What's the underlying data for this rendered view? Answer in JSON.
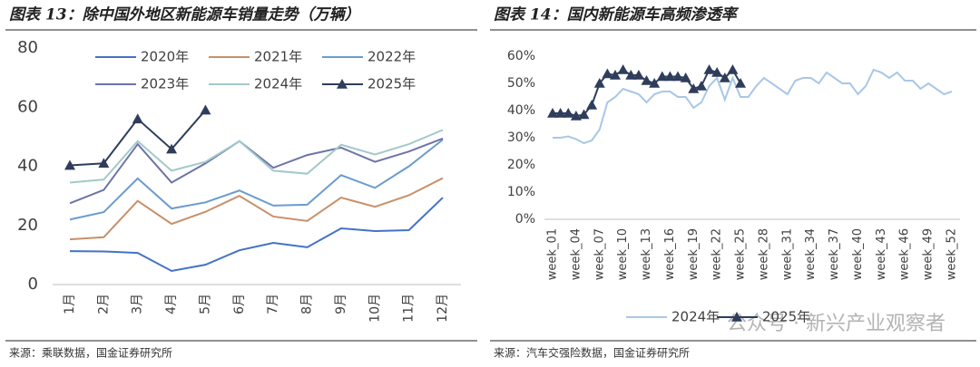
{
  "chart_data": [
    {
      "type": "line",
      "title": "图表 13：除中国外地区新能源车销量走势（万辆）",
      "source": "来源：乘联数据，国金证券研究所",
      "categories": [
        "1月",
        "2月",
        "3月",
        "4月",
        "5月",
        "6月",
        "7月",
        "8月",
        "9月",
        "10月",
        "11月",
        "12月"
      ],
      "ylim": [
        0,
        80
      ],
      "yticks": [
        0,
        20,
        40,
        60,
        80
      ],
      "legend": "top",
      "grid": false,
      "series": [
        {
          "name": "2020年",
          "color": "#4472c4",
          "values": [
            11.3,
            11.2,
            10.7,
            4.6,
            6.7,
            11.6,
            14.1,
            12.6,
            19,
            18.1,
            18.4,
            29.4
          ]
        },
        {
          "name": "2021年",
          "color": "#c8906a",
          "values": [
            15.3,
            16,
            28.3,
            20.5,
            24.6,
            30,
            23,
            21.5,
            29.4,
            26.3,
            30.2,
            36
          ]
        },
        {
          "name": "2022年",
          "color": "#6a9bd0",
          "values": [
            22,
            24.5,
            35.9,
            25.7,
            27.8,
            31.8,
            26.7,
            27,
            37,
            32.7,
            40,
            49
          ]
        },
        {
          "name": "2023年",
          "color": "#6d74a8",
          "values": [
            27.5,
            32,
            47.5,
            34.5,
            41,
            48.5,
            39.5,
            43.8,
            46.3,
            41.5,
            45,
            49.4
          ]
        },
        {
          "name": "2024年",
          "color": "#a3c9c9",
          "values": [
            34.5,
            35.5,
            48.5,
            38.5,
            41.5,
            48.5,
            38.5,
            37.5,
            47.3,
            44,
            47.5,
            52.3
          ]
        },
        {
          "name": "2025年",
          "color": "#2f3d5c",
          "marker": "triangle",
          "values": [
            40.3,
            41,
            56,
            45.8,
            59,
            null,
            null,
            null,
            null,
            null,
            null,
            null
          ]
        }
      ]
    },
    {
      "type": "line",
      "title": "图表 14：国内新能源车高频渗透率",
      "source": "来源：汽车交强险数据，国金证券研究所",
      "categories": [
        "week_01",
        null,
        null,
        "week_04",
        null,
        null,
        "week_07",
        null,
        null,
        "week_10",
        null,
        null,
        "week_13",
        null,
        null,
        "week_16",
        null,
        null,
        "week_19",
        null,
        null,
        "week_22",
        null,
        null,
        "week_25",
        null,
        null,
        "week_28",
        null,
        null,
        "week_31",
        null,
        null,
        "week_34",
        null,
        null,
        "week_37",
        null,
        null,
        "week_40",
        null,
        null,
        "week_43",
        null,
        null,
        "week_46",
        null,
        null,
        "week_49",
        null,
        null,
        "week_52"
      ],
      "ylim": [
        0,
        60
      ],
      "yticks": [
        {
          "value": 0,
          "label": "0%"
        },
        {
          "value": 10,
          "label": "10%"
        },
        {
          "value": 20,
          "label": "20%"
        },
        {
          "value": 30,
          "label": "30%"
        },
        {
          "value": 40,
          "label": "40%"
        },
        {
          "value": 50,
          "label": "50%"
        },
        {
          "value": 60,
          "label": "60%"
        }
      ],
      "legend": "bottom",
      "grid": false,
      "series": [
        {
          "name": "2024年",
          "color": "#a9c7e6",
          "values": [
            30,
            30,
            30.5,
            29.5,
            28,
            29,
            33,
            43,
            45,
            48,
            47,
            46,
            43,
            46,
            47,
            47,
            45,
            45,
            41,
            43,
            49,
            52,
            44,
            52,
            45,
            45,
            49,
            52,
            50,
            48,
            46,
            51,
            52,
            52,
            50,
            54,
            52,
            50,
            50,
            46,
            49,
            55,
            54,
            52,
            54,
            51,
            51,
            48,
            50,
            48,
            46,
            47
          ]
        },
        {
          "name": "2025年",
          "color": "#2f3d5c",
          "marker": "triangle",
          "values": [
            39,
            39,
            39,
            38,
            38.5,
            42,
            50,
            53.5,
            53,
            55,
            53,
            53,
            51,
            50,
            52.5,
            52.5,
            52.5,
            52,
            48,
            49,
            55,
            54,
            52,
            55,
            50,
            null,
            null,
            null,
            null,
            null,
            null,
            null,
            null,
            null,
            null,
            null,
            null,
            null,
            null,
            null,
            null,
            null,
            null,
            null,
            null,
            null,
            null,
            null,
            null,
            null,
            null,
            null
          ]
        }
      ]
    }
  ],
  "watermark": "公众号 · 新兴产业观察者"
}
